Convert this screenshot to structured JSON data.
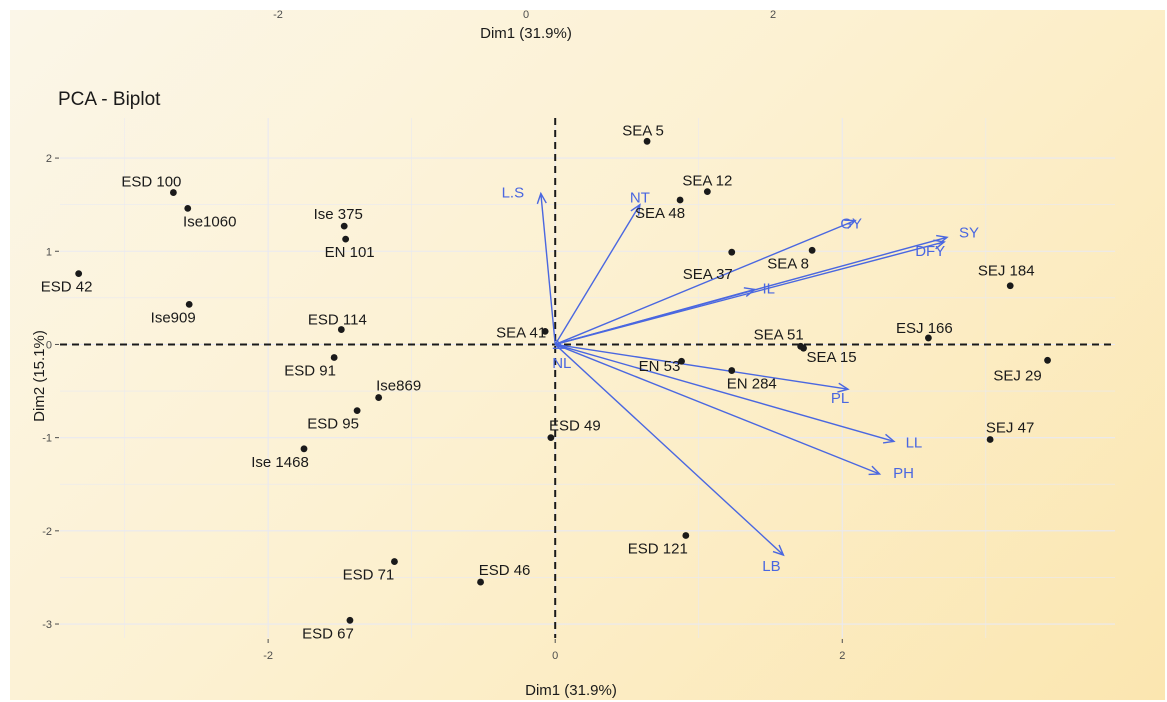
{
  "chart_data": {
    "type": "scatter",
    "title": "PCA - Biplot",
    "xlabel": "Dim1 (31.9%)",
    "ylabel": "Dim2 (15.1%)",
    "top_xlabel": "Dim1 (31.9%)",
    "xlim": [
      -3.45,
      3.9
    ],
    "ylim": [
      -3.15,
      2.43
    ],
    "x_ticks": [
      -2,
      0,
      2
    ],
    "x_tick_labels": [
      "-2",
      "0",
      "2"
    ],
    "y_ticks": [
      -3,
      -2,
      -1,
      0,
      1,
      2
    ],
    "y_tick_labels": [
      "-3",
      "-2",
      "-1",
      "0",
      "1",
      "2"
    ],
    "top_ticks": [
      -2,
      0,
      2
    ],
    "top_tick_labels": [
      "-2",
      "0",
      "2"
    ],
    "grid": true,
    "colors": {
      "points": "#1a1a1a",
      "variables": "#4a67e0",
      "grid": "#e9e9f1",
      "reference_lines": "#1a1a1a"
    },
    "individuals": [
      {
        "label": "SEA 5",
        "x": 0.64,
        "y": 2.18
      },
      {
        "label": "SEA 12",
        "x": 1.06,
        "y": 1.64
      },
      {
        "label": "SEA 48",
        "x": 0.87,
        "y": 1.55
      },
      {
        "label": "SEA 37",
        "x": 1.23,
        "y": 0.99
      },
      {
        "label": "SEA 8",
        "x": 1.79,
        "y": 1.01
      },
      {
        "label": "SEJ 184",
        "x": 3.17,
        "y": 0.63
      },
      {
        "label": "ESJ 166",
        "x": 2.6,
        "y": 0.07
      },
      {
        "label": "SEA 51",
        "x": 1.71,
        "y": -0.02
      },
      {
        "label": "SEA 15",
        "x": 1.73,
        "y": -0.04
      },
      {
        "label": "SEJ 29",
        "x": 3.43,
        "y": -0.17
      },
      {
        "label": "EN 53",
        "x": 0.88,
        "y": -0.18
      },
      {
        "label": "EN 284",
        "x": 1.23,
        "y": -0.28
      },
      {
        "label": "SEJ 47",
        "x": 3.03,
        "y": -1.02
      },
      {
        "label": "ESD 49",
        "x": -0.03,
        "y": -1.0
      },
      {
        "label": "SEA 41",
        "x": -0.07,
        "y": 0.14
      },
      {
        "label": "ESD 121",
        "x": 0.91,
        "y": -2.05
      },
      {
        "label": "ESD 46",
        "x": -0.52,
        "y": -2.55
      },
      {
        "label": "ESD 71",
        "x": -1.12,
        "y": -2.33
      },
      {
        "label": "ESD 67",
        "x": -1.43,
        "y": -2.96
      },
      {
        "label": "ESD 100",
        "x": -2.66,
        "y": 1.63
      },
      {
        "label": "Ise1060",
        "x": -2.56,
        "y": 1.46
      },
      {
        "label": "ESD 42",
        "x": -3.32,
        "y": 0.76
      },
      {
        "label": "Ise909",
        "x": -2.55,
        "y": 0.43
      },
      {
        "label": "Ise 375",
        "x": -1.47,
        "y": 1.27
      },
      {
        "label": "EN 101",
        "x": -1.46,
        "y": 1.13
      },
      {
        "label": "ESD 114",
        "x": -1.49,
        "y": 0.16
      },
      {
        "label": "ESD 91",
        "x": -1.54,
        "y": -0.14
      },
      {
        "label": "Ise869",
        "x": -1.23,
        "y": -0.57
      },
      {
        "label": "ESD 95",
        "x": -1.38,
        "y": -0.71
      },
      {
        "label": "Ise 1468",
        "x": -1.75,
        "y": -1.12
      }
    ],
    "variables": [
      {
        "label": "L.S",
        "x": -0.1,
        "y": 1.62
      },
      {
        "label": "NT",
        "x": 0.59,
        "y": 1.5
      },
      {
        "label": "GY",
        "x": 2.09,
        "y": 1.33
      },
      {
        "label": "SY",
        "x": 2.73,
        "y": 1.15
      },
      {
        "label": "DFY",
        "x": 2.71,
        "y": 1.1
      },
      {
        "label": "IL",
        "x": 1.39,
        "y": 0.59
      },
      {
        "label": "NL",
        "x": 0.06,
        "y": -0.04
      },
      {
        "label": "PL",
        "x": 2.04,
        "y": -0.48
      },
      {
        "label": "LL",
        "x": 2.36,
        "y": -1.04
      },
      {
        "label": "PH",
        "x": 2.26,
        "y": -1.39
      },
      {
        "label": "LB",
        "x": 1.59,
        "y": -2.26
      }
    ]
  }
}
